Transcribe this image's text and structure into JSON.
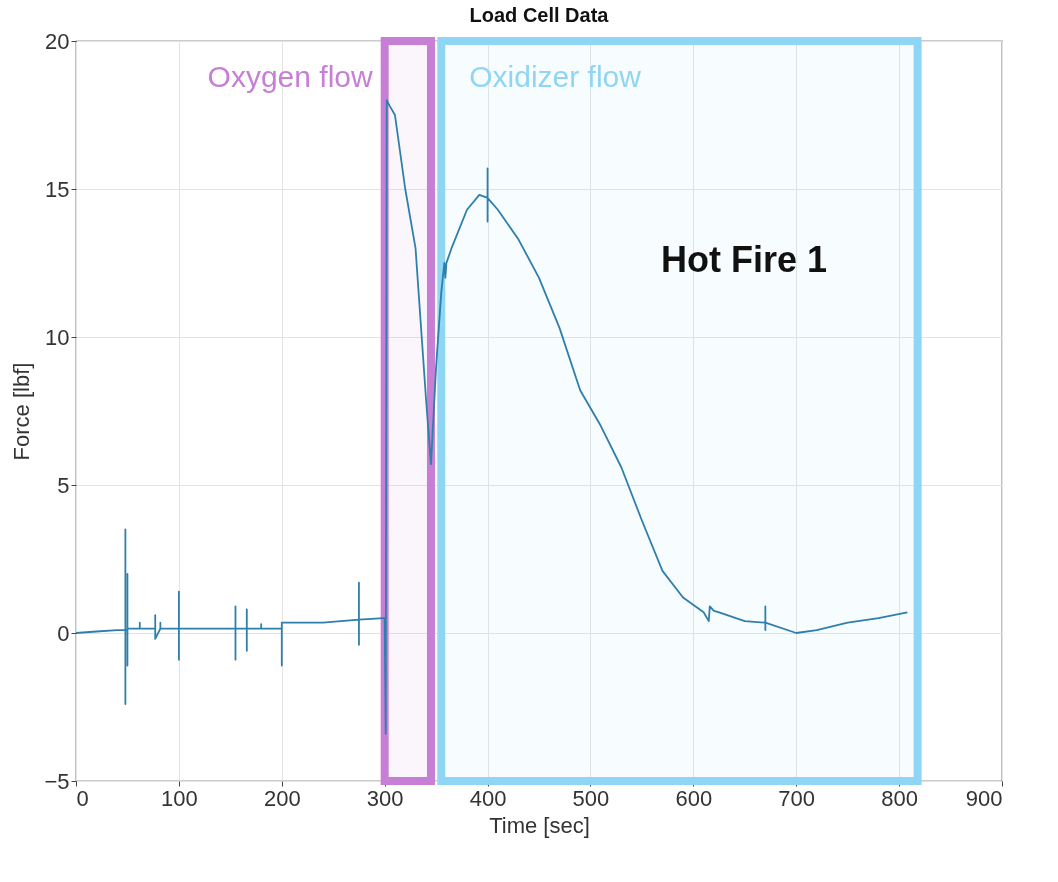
{
  "chart_data": {
    "type": "line",
    "title": "Load Cell Data",
    "xlabel": "Time [sec]",
    "ylabel": "Force [lbf]",
    "xlim": [
      0,
      900
    ],
    "ylim": [
      -5,
      20
    ],
    "xticks": [
      0,
      100,
      200,
      300,
      400,
      500,
      600,
      700,
      800,
      900
    ],
    "yticks": [
      -5,
      0,
      5,
      10,
      15,
      20
    ],
    "grid": true,
    "series": [
      {
        "color": "#2f7fab",
        "x": [
          0,
          20,
          40,
          48,
          48,
          48,
          48,
          50,
          50,
          50,
          50,
          62,
          62,
          62,
          77,
          77,
          77,
          82,
          82,
          82,
          100,
          100,
          100,
          100,
          130,
          155,
          155,
          155,
          155,
          166,
          166,
          166,
          166,
          180,
          180,
          180,
          200,
          200,
          200,
          200,
          240,
          275,
          275,
          275,
          275,
          299,
          300,
          301,
          302,
          305,
          310,
          320,
          330,
          340,
          345,
          350,
          355,
          358,
          359,
          360,
          365,
          380,
          392,
          400,
          400,
          400,
          400,
          410,
          430,
          450,
          470,
          490,
          510,
          530,
          550,
          570,
          590,
          610,
          615,
          616,
          620,
          625,
          650,
          670,
          670,
          670,
          670,
          700,
          720,
          750,
          780,
          808
        ],
        "values": [
          0.0,
          0.05,
          0.1,
          0.1,
          3.5,
          -2.4,
          0.1,
          0.1,
          2.0,
          -1.1,
          0.15,
          0.15,
          0.35,
          0.15,
          0.15,
          0.6,
          -0.2,
          0.15,
          0.35,
          0.15,
          0.15,
          1.4,
          -0.9,
          0.15,
          0.15,
          0.15,
          0.9,
          -0.9,
          0.15,
          0.15,
          0.8,
          -0.6,
          0.15,
          0.15,
          0.3,
          0.15,
          0.15,
          0.2,
          -1.1,
          0.35,
          0.35,
          0.45,
          1.7,
          -0.4,
          0.45,
          0.5,
          0.5,
          -3.4,
          18.0,
          17.8,
          17.5,
          15.0,
          13.0,
          8.0,
          5.7,
          9.0,
          11.5,
          12.5,
          12.0,
          12.5,
          13.0,
          14.3,
          14.8,
          14.7,
          15.7,
          13.9,
          14.7,
          14.3,
          13.3,
          12.0,
          10.3,
          8.2,
          7.0,
          5.6,
          3.8,
          2.1,
          1.2,
          0.7,
          0.4,
          0.9,
          0.75,
          0.7,
          0.4,
          0.35,
          0.9,
          0.1,
          0.35,
          0.0,
          0.1,
          0.35,
          0.5,
          0.7
        ]
      }
    ],
    "bands": [
      {
        "axis": "x",
        "from": 300,
        "to": 345,
        "label": "Oxygen flow",
        "color": "#c77fd6"
      },
      {
        "axis": "x",
        "from": 355,
        "to": 818,
        "label": "Oxidizer flow",
        "color": "#8fd6f4"
      }
    ],
    "annotations": [
      "Hot Fire 1"
    ]
  }
}
